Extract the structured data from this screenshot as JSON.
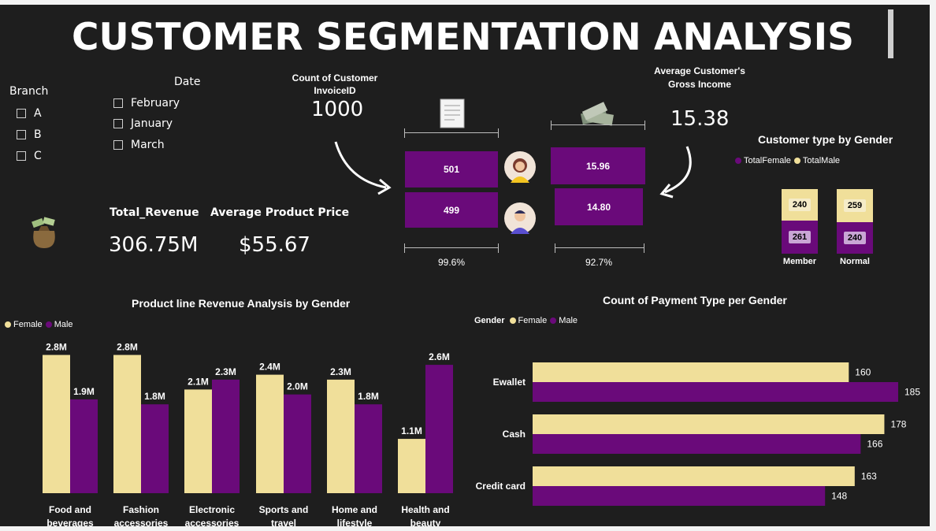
{
  "title": "CUSTOMER SEGMENTATION ANALYSIS",
  "colors": {
    "female": "#f0df9a",
    "male": "#6a0a7a",
    "bg": "#1e1e1e"
  },
  "branch_slicer": {
    "title": "Branch",
    "items": [
      "A",
      "B",
      "C"
    ]
  },
  "date_slicer": {
    "title": "Date",
    "items": [
      "February",
      "January",
      "March"
    ]
  },
  "kpis": {
    "total_revenue_label": "Total_Revenue",
    "total_revenue_value": "306.75M",
    "avg_price_label": "Average Product Price",
    "avg_price_value": "$55.67",
    "invoice_count_label": "Count of Customer InvoiceID",
    "invoice_count_value": "1000",
    "gross_income_label": "Average Customer's Gross Income",
    "gross_income_value": "15.38"
  },
  "invoice_split": {
    "female": "501",
    "male": "499",
    "pct": "99.6%"
  },
  "income_split": {
    "female": "15.96",
    "male": "14.80",
    "pct": "92.7%"
  },
  "customer_type_chart": {
    "title": "Customer type by Gender",
    "legend": [
      "TotalFemale",
      "TotalMale"
    ],
    "member": {
      "label": "Member",
      "female": "261",
      "male": "240"
    },
    "normal": {
      "label": "Normal",
      "female": "240",
      "male": "259"
    }
  },
  "icons": {
    "bag": "money-bag-icon",
    "receipt": "receipt-icon",
    "cash": "cash-stack-icon",
    "female_avatar": "female-avatar-icon",
    "male_avatar": "male-avatar-icon"
  },
  "chart_data": [
    {
      "type": "bar",
      "title": "Product line Revenue Analysis by Gender",
      "legend": [
        "Female",
        "Male"
      ],
      "categories": [
        "Food and beverages",
        "Fashion accessories",
        "Electronic accessories",
        "Sports and travel",
        "Home and lifestyle",
        "Health and beauty"
      ],
      "series": [
        {
          "name": "Female",
          "values": [
            2.8,
            2.8,
            2.1,
            2.4,
            2.3,
            1.1
          ],
          "labels": [
            "2.8M",
            "2.8M",
            "2.1M",
            "2.4M",
            "2.3M",
            "1.1M"
          ]
        },
        {
          "name": "Male",
          "values": [
            1.9,
            1.8,
            2.3,
            2.0,
            1.8,
            2.6
          ],
          "labels": [
            "1.9M",
            "1.8M",
            "2.3M",
            "2.0M",
            "1.8M",
            "2.6M"
          ]
        }
      ]
    },
    {
      "type": "bar",
      "orientation": "horizontal",
      "title": "Count of Payment Type per Gender",
      "legend_title": "Gender",
      "legend": [
        "Female",
        "Male"
      ],
      "categories": [
        "Ewallet",
        "Cash",
        "Credit card"
      ],
      "series": [
        {
          "name": "Female",
          "values": [
            160,
            178,
            163
          ]
        },
        {
          "name": "Male",
          "values": [
            185,
            166,
            148
          ]
        }
      ]
    }
  ]
}
